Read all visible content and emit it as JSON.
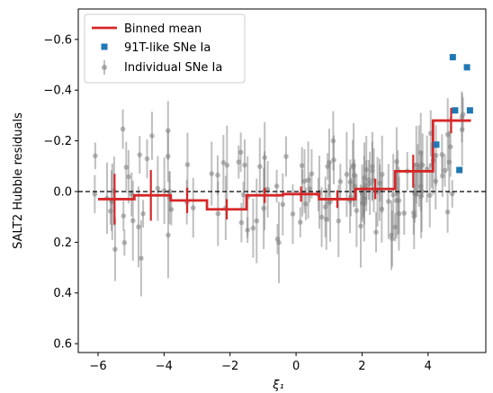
{
  "chart_data": {
    "type": "scatter",
    "xlabel": "ξ₁",
    "ylabel": "SALT2 Hubble residuals",
    "xlim": [
      -6.6,
      5.75
    ],
    "ylim": [
      0.635,
      -0.72
    ],
    "y_inverted": true,
    "x_ticks": [
      -6,
      -4,
      -2,
      0,
      2,
      4
    ],
    "x_tick_labels": [
      "−6",
      "−4",
      "−2",
      "0",
      "2",
      "4"
    ],
    "y_ticks": [
      -0.6,
      -0.4,
      -0.2,
      0.0,
      0.2,
      0.4,
      0.6
    ],
    "y_tick_labels": [
      "−0.6",
      "−0.4",
      "−0.2",
      "0.0",
      "0.2",
      "0.4",
      "0.6"
    ],
    "reference_line": {
      "y": 0,
      "style": "dashed",
      "color": "#000000"
    },
    "legend": {
      "placement": "upper-left",
      "entries": [
        {
          "label": "Binned mean",
          "marker": "line",
          "color": "#d62728"
        },
        {
          "label": "91T-like SNe Ia",
          "marker": "square",
          "color": "#1f77b4"
        },
        {
          "label": "Individual SNe Ia",
          "marker": "point-errorbar",
          "color": "#808080"
        }
      ]
    },
    "series": [
      {
        "name": "Binned mean",
        "color": "#d62728",
        "kind": "step",
        "bins": [
          {
            "x0": -6.0,
            "x1": -4.9,
            "y": 0.03,
            "xc": -5.5,
            "err": 0.1
          },
          {
            "x0": -4.9,
            "x1": -3.8,
            "y": 0.015,
            "xc": -4.4,
            "err": 0.1
          },
          {
            "x0": -3.8,
            "x1": -2.7,
            "y": 0.035,
            "xc": -3.3,
            "err": 0.05
          },
          {
            "x0": -2.7,
            "x1": -1.5,
            "y": 0.07,
            "xc": -2.1,
            "err": 0.04
          },
          {
            "x0": -1.5,
            "x1": -0.4,
            "y": 0.015,
            "xc": -0.95,
            "err": 0.03
          },
          {
            "x0": -0.4,
            "x1": 0.7,
            "y": 0.01,
            "xc": 0.15,
            "err": 0.03
          },
          {
            "x0": 0.7,
            "x1": 1.8,
            "y": 0.03,
            "xc": 1.25,
            "err": 0.035
          },
          {
            "x0": 1.8,
            "x1": 3.0,
            "y": -0.01,
            "xc": 2.4,
            "err": 0.04
          },
          {
            "x0": 3.0,
            "x1": 4.15,
            "y": -0.08,
            "xc": 3.55,
            "err": 0.065
          },
          {
            "x0": 4.15,
            "x1": 5.3,
            "y": -0.28,
            "xc": 4.7,
            "err": 0.05
          }
        ]
      },
      {
        "name": "91T-like SNe Ia",
        "color": "#1f77b4",
        "kind": "square",
        "points": [
          {
            "x": 4.25,
            "y": -0.185
          },
          {
            "x": 4.75,
            "y": -0.53
          },
          {
            "x": 4.82,
            "y": -0.32
          },
          {
            "x": 4.95,
            "y": -0.085
          },
          {
            "x": 5.18,
            "y": -0.49
          },
          {
            "x": 5.27,
            "y": -0.32
          }
        ]
      },
      {
        "name": "Individual SNe Ia",
        "color": "#808080",
        "kind": "errorbar",
        "seed": 7,
        "count": 150
      }
    ]
  }
}
